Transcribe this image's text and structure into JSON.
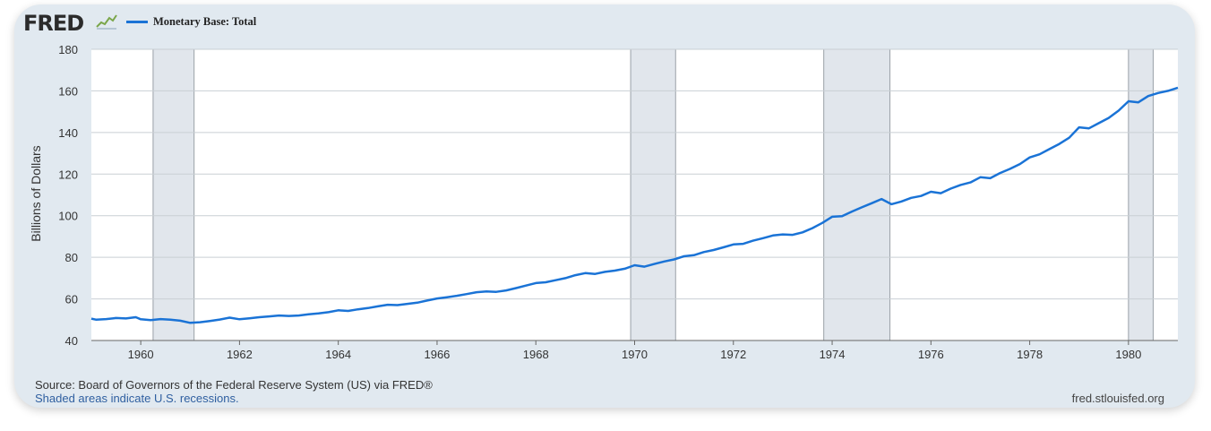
{
  "header": {
    "logo_text": "FRED",
    "legend_label": "Monetary Base: Total",
    "series_color": "#1a73d6"
  },
  "footer": {
    "source": "Source: Board of Governors of the Federal Reserve System (US) via FRED®",
    "note": "Shaded areas indicate U.S. recessions.",
    "site": "fred.stlouisfed.org"
  },
  "chart_data": {
    "type": "line",
    "title": "",
    "xlabel": "",
    "ylabel": "Billions of Dollars",
    "xlim": [
      1959.0,
      1981.0
    ],
    "ylim": [
      40,
      180
    ],
    "yticks": [
      40,
      60,
      80,
      100,
      120,
      140,
      160,
      180
    ],
    "xticks": [
      {
        "value": 1960,
        "label": "1960"
      },
      {
        "value": 1962,
        "label": "1962"
      },
      {
        "value": 1964,
        "label": "1964"
      },
      {
        "value": 1966,
        "label": "1966"
      },
      {
        "value": 1968,
        "label": "1968"
      },
      {
        "value": 1970,
        "label": "1970"
      },
      {
        "value": 1972,
        "label": "1972"
      },
      {
        "value": 1974,
        "label": "1974"
      },
      {
        "value": 1976,
        "label": "1976"
      },
      {
        "value": 1978,
        "label": "1978"
      },
      {
        "value": 1980,
        "label": "1980"
      }
    ],
    "grid": true,
    "recessions": [
      [
        1960.25,
        1961.08
      ],
      [
        1969.92,
        1970.83
      ],
      [
        1973.83,
        1975.17
      ],
      [
        1980.0,
        1980.5
      ]
    ],
    "series": [
      {
        "name": "Monetary Base: Total",
        "x": [
          1959.0,
          1959.1,
          1959.3,
          1959.5,
          1959.7,
          1959.9,
          1960.0,
          1960.2,
          1960.4,
          1960.6,
          1960.8,
          1961.0,
          1961.2,
          1961.4,
          1961.6,
          1961.8,
          1962.0,
          1962.2,
          1962.4,
          1962.6,
          1962.8,
          1963.0,
          1963.2,
          1963.4,
          1963.6,
          1963.8,
          1964.0,
          1964.2,
          1964.4,
          1964.6,
          1964.8,
          1965.0,
          1965.2,
          1965.4,
          1965.6,
          1965.8,
          1966.0,
          1966.2,
          1966.4,
          1966.6,
          1966.8,
          1967.0,
          1967.2,
          1967.4,
          1967.6,
          1967.8,
          1968.0,
          1968.2,
          1968.4,
          1968.6,
          1968.8,
          1969.0,
          1969.2,
          1969.4,
          1969.6,
          1969.8,
          1970.0,
          1970.2,
          1970.4,
          1970.6,
          1970.8,
          1971.0,
          1971.2,
          1971.4,
          1971.6,
          1971.8,
          1972.0,
          1972.2,
          1972.4,
          1972.6,
          1972.8,
          1973.0,
          1973.2,
          1973.4,
          1973.6,
          1973.8,
          1974.0,
          1974.2,
          1974.4,
          1974.6,
          1974.8,
          1975.0,
          1975.2,
          1975.4,
          1975.6,
          1975.8,
          1976.0,
          1976.2,
          1976.4,
          1976.6,
          1976.8,
          1977.0,
          1977.2,
          1977.4,
          1977.6,
          1977.8,
          1978.0,
          1978.2,
          1978.4,
          1978.6,
          1978.8,
          1979.0,
          1979.2,
          1979.4,
          1979.6,
          1979.8,
          1980.0,
          1980.2,
          1980.4,
          1980.6,
          1980.8,
          1981.0
        ],
        "y": [
          50.5,
          50.0,
          50.3,
          50.8,
          50.6,
          51.2,
          50.2,
          49.8,
          50.3,
          50.0,
          49.5,
          48.5,
          48.8,
          49.4,
          50.1,
          51.0,
          50.2,
          50.7,
          51.2,
          51.6,
          52.0,
          51.8,
          52.0,
          52.6,
          53.0,
          53.6,
          54.5,
          54.2,
          55.0,
          55.6,
          56.4,
          57.2,
          57.0,
          57.6,
          58.2,
          59.2,
          60.2,
          60.8,
          61.5,
          62.3,
          63.2,
          63.6,
          63.4,
          64.1,
          65.2,
          66.4,
          67.6,
          68.0,
          69.0,
          70.0,
          71.4,
          72.4,
          72.0,
          73.0,
          73.6,
          74.5,
          76.2,
          75.5,
          76.8,
          78.0,
          79.0,
          80.5,
          81.0,
          82.5,
          83.5,
          84.8,
          86.2,
          86.5,
          88.0,
          89.2,
          90.5,
          91.0,
          90.8,
          92.0,
          94.0,
          96.5,
          99.5,
          99.8,
          102.0,
          104.0,
          106.0,
          108.0,
          105.5,
          106.8,
          108.6,
          109.5,
          111.5,
          110.8,
          113.0,
          114.8,
          116.0,
          118.5,
          118.0,
          120.5,
          122.5,
          124.8,
          128.0,
          129.5,
          132.0,
          134.5,
          137.5,
          142.5,
          142.0,
          144.5,
          147.0,
          150.5,
          155.0,
          154.5,
          157.5,
          159.0,
          160.0,
          161.5
        ]
      }
    ]
  }
}
